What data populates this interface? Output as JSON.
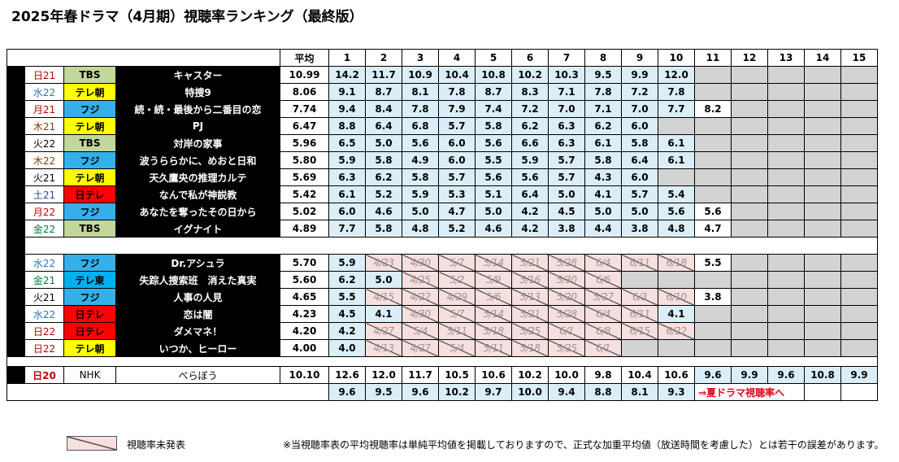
{
  "title": "2025年春ドラマ（4月期）視聴率ランキング（最終版）",
  "header": {
    "avg_label": "平均",
    "episodes": [
      "1",
      "2",
      "3",
      "4",
      "5",
      "6",
      "7",
      "8",
      "9",
      "10",
      "11",
      "12",
      "13",
      "14",
      "15"
    ]
  },
  "colors": {
    "tbs": "#c4d79b",
    "tvasahi": "#ffff00",
    "fuji": "#33b0ea",
    "ntv": "#ff0000",
    "tvtokyo": "#00b0f0",
    "blue_cell": "#dbeef8",
    "hatch_cell": "#f6dfdf",
    "gray_cell": "#d3d3d3",
    "mon": "#c00000",
    "tue": "#000000",
    "wed": "#2e75b6",
    "thu": "#833c0b",
    "fri": "#c00000",
    "sat": "#1f4e9a",
    "sun_day": "#c00000",
    "gold": "#00803a"
  },
  "dramas": [
    {
      "day": "日21",
      "day_color": "#c00000",
      "station": "TBS",
      "station_color": "#c4d79b",
      "title": "キャスター",
      "avg": "10.99",
      "eps": [
        {
          "t": "v",
          "v": "14.2"
        },
        {
          "t": "v",
          "v": "11.7"
        },
        {
          "t": "v",
          "v": "10.9"
        },
        {
          "t": "v",
          "v": "10.4"
        },
        {
          "t": "v",
          "v": "10.8"
        },
        {
          "t": "v",
          "v": "10.2"
        },
        {
          "t": "v",
          "v": "10.3"
        },
        {
          "t": "v",
          "v": "9.5"
        },
        {
          "t": "v",
          "v": "9.9"
        },
        {
          "t": "v",
          "v": "12.0"
        },
        {
          "t": "g",
          "v": ""
        },
        {
          "t": "g",
          "v": ""
        },
        {
          "t": "g",
          "v": ""
        },
        {
          "t": "g",
          "v": ""
        },
        {
          "t": "g",
          "v": ""
        }
      ]
    },
    {
      "day": "水22",
      "day_color": "#2e75b6",
      "station": "テレ朝",
      "station_color": "#ffff00",
      "title": "特捜9",
      "avg": "8.06",
      "eps": [
        {
          "t": "v",
          "v": "9.1"
        },
        {
          "t": "v",
          "v": "8.7"
        },
        {
          "t": "v",
          "v": "8.1"
        },
        {
          "t": "v",
          "v": "7.8"
        },
        {
          "t": "v",
          "v": "8.7"
        },
        {
          "t": "v",
          "v": "8.3"
        },
        {
          "t": "v",
          "v": "7.1"
        },
        {
          "t": "v",
          "v": "7.8"
        },
        {
          "t": "v",
          "v": "7.2"
        },
        {
          "t": "v",
          "v": "7.8"
        },
        {
          "t": "g",
          "v": ""
        },
        {
          "t": "g",
          "v": ""
        },
        {
          "t": "g",
          "v": ""
        },
        {
          "t": "g",
          "v": ""
        },
        {
          "t": "g",
          "v": ""
        }
      ]
    },
    {
      "day": "月21",
      "day_color": "#c00000",
      "station": "フジ",
      "station_color": "#33b0ea",
      "title": "続・続・最後から二番目の恋",
      "avg": "7.74",
      "eps": [
        {
          "t": "v",
          "v": "9.4"
        },
        {
          "t": "v",
          "v": "8.4"
        },
        {
          "t": "v",
          "v": "7.8"
        },
        {
          "t": "v",
          "v": "7.9"
        },
        {
          "t": "v",
          "v": "7.4"
        },
        {
          "t": "v",
          "v": "7.2"
        },
        {
          "t": "v",
          "v": "7.0"
        },
        {
          "t": "v",
          "v": "7.1"
        },
        {
          "t": "v",
          "v": "7.0"
        },
        {
          "t": "v",
          "v": "7.7"
        },
        {
          "t": "w",
          "v": "8.2"
        },
        {
          "t": "g",
          "v": ""
        },
        {
          "t": "g",
          "v": ""
        },
        {
          "t": "g",
          "v": ""
        },
        {
          "t": "g",
          "v": ""
        }
      ]
    },
    {
      "day": "木21",
      "day_color": "#833c0b",
      "station": "テレ朝",
      "station_color": "#ffff00",
      "title": "PJ",
      "avg": "6.47",
      "eps": [
        {
          "t": "v",
          "v": "8.8"
        },
        {
          "t": "v",
          "v": "6.4"
        },
        {
          "t": "v",
          "v": "6.8"
        },
        {
          "t": "v",
          "v": "5.7"
        },
        {
          "t": "v",
          "v": "5.8"
        },
        {
          "t": "v",
          "v": "6.2"
        },
        {
          "t": "v",
          "v": "6.3"
        },
        {
          "t": "v",
          "v": "6.2"
        },
        {
          "t": "v",
          "v": "6.0"
        },
        {
          "t": "g",
          "v": ""
        },
        {
          "t": "g",
          "v": ""
        },
        {
          "t": "g",
          "v": ""
        },
        {
          "t": "g",
          "v": ""
        },
        {
          "t": "g",
          "v": ""
        },
        {
          "t": "g",
          "v": ""
        }
      ]
    },
    {
      "day": "火22",
      "day_color": "#000000",
      "station": "TBS",
      "station_color": "#c4d79b",
      "title": "対岸の家事",
      "avg": "5.96",
      "eps": [
        {
          "t": "v",
          "v": "6.5"
        },
        {
          "t": "v",
          "v": "5.0"
        },
        {
          "t": "v",
          "v": "5.6"
        },
        {
          "t": "v",
          "v": "6.0"
        },
        {
          "t": "v",
          "v": "5.6"
        },
        {
          "t": "v",
          "v": "6.6"
        },
        {
          "t": "v",
          "v": "6.3"
        },
        {
          "t": "v",
          "v": "6.1"
        },
        {
          "t": "v",
          "v": "5.8"
        },
        {
          "t": "v",
          "v": "6.1"
        },
        {
          "t": "g",
          "v": ""
        },
        {
          "t": "g",
          "v": ""
        },
        {
          "t": "g",
          "v": ""
        },
        {
          "t": "g",
          "v": ""
        },
        {
          "t": "g",
          "v": ""
        }
      ]
    },
    {
      "day": "木22",
      "day_color": "#833c0b",
      "station": "フジ",
      "station_color": "#33b0ea",
      "title": "波うららかに、めおと日和",
      "avg": "5.80",
      "eps": [
        {
          "t": "v",
          "v": "5.9"
        },
        {
          "t": "v",
          "v": "5.8"
        },
        {
          "t": "v",
          "v": "4.9"
        },
        {
          "t": "v",
          "v": "6.0"
        },
        {
          "t": "v",
          "v": "5.5"
        },
        {
          "t": "v",
          "v": "5.9"
        },
        {
          "t": "v",
          "v": "5.7"
        },
        {
          "t": "v",
          "v": "5.8"
        },
        {
          "t": "v",
          "v": "6.4"
        },
        {
          "t": "v",
          "v": "6.1"
        },
        {
          "t": "g",
          "v": ""
        },
        {
          "t": "g",
          "v": ""
        },
        {
          "t": "g",
          "v": ""
        },
        {
          "t": "g",
          "v": ""
        },
        {
          "t": "g",
          "v": ""
        }
      ]
    },
    {
      "day": "火21",
      "day_color": "#000000",
      "station": "テレ朝",
      "station_color": "#ffff00",
      "title": "天久鷹央の推理カルテ",
      "avg": "5.69",
      "eps": [
        {
          "t": "v",
          "v": "6.3"
        },
        {
          "t": "v",
          "v": "6.2"
        },
        {
          "t": "v",
          "v": "5.8"
        },
        {
          "t": "v",
          "v": "5.7"
        },
        {
          "t": "v",
          "v": "5.6"
        },
        {
          "t": "v",
          "v": "5.6"
        },
        {
          "t": "v",
          "v": "5.7"
        },
        {
          "t": "v",
          "v": "4.3"
        },
        {
          "t": "v",
          "v": "6.0"
        },
        {
          "t": "g",
          "v": ""
        },
        {
          "t": "g",
          "v": ""
        },
        {
          "t": "g",
          "v": ""
        },
        {
          "t": "g",
          "v": ""
        },
        {
          "t": "g",
          "v": ""
        },
        {
          "t": "g",
          "v": ""
        }
      ]
    },
    {
      "day": "土21",
      "day_color": "#1f4e9a",
      "station": "日テレ",
      "station_color": "#ff0000",
      "title": "なんで私が神説教",
      "avg": "5.42",
      "eps": [
        {
          "t": "v",
          "v": "6.1"
        },
        {
          "t": "v",
          "v": "5.2"
        },
        {
          "t": "v",
          "v": "5.9"
        },
        {
          "t": "v",
          "v": "5.3"
        },
        {
          "t": "v",
          "v": "5.1"
        },
        {
          "t": "v",
          "v": "6.4"
        },
        {
          "t": "v",
          "v": "5.0"
        },
        {
          "t": "v",
          "v": "4.1"
        },
        {
          "t": "v",
          "v": "5.7"
        },
        {
          "t": "v",
          "v": "5.4"
        },
        {
          "t": "g",
          "v": ""
        },
        {
          "t": "g",
          "v": ""
        },
        {
          "t": "g",
          "v": ""
        },
        {
          "t": "g",
          "v": ""
        },
        {
          "t": "g",
          "v": ""
        }
      ]
    },
    {
      "day": "月22",
      "day_color": "#c00000",
      "station": "フジ",
      "station_color": "#33b0ea",
      "title": "あなたを奪ったその日から",
      "avg": "5.02",
      "eps": [
        {
          "t": "v",
          "v": "6.0"
        },
        {
          "t": "v",
          "v": "4.6"
        },
        {
          "t": "v",
          "v": "5.0"
        },
        {
          "t": "v",
          "v": "4.7"
        },
        {
          "t": "v",
          "v": "5.0"
        },
        {
          "t": "v",
          "v": "4.2"
        },
        {
          "t": "v",
          "v": "4.5"
        },
        {
          "t": "v",
          "v": "5.0"
        },
        {
          "t": "v",
          "v": "5.0"
        },
        {
          "t": "v",
          "v": "5.6"
        },
        {
          "t": "w",
          "v": "5.6"
        },
        {
          "t": "g",
          "v": ""
        },
        {
          "t": "g",
          "v": ""
        },
        {
          "t": "g",
          "v": ""
        },
        {
          "t": "g",
          "v": ""
        }
      ]
    },
    {
      "day": "金22",
      "day_color": "#00803a",
      "station": "TBS",
      "station_color": "#c4d79b",
      "title": "イグナイト",
      "avg": "4.89",
      "eps": [
        {
          "t": "v",
          "v": "7.7"
        },
        {
          "t": "v",
          "v": "5.8"
        },
        {
          "t": "v",
          "v": "4.8"
        },
        {
          "t": "v",
          "v": "5.2"
        },
        {
          "t": "v",
          "v": "4.6"
        },
        {
          "t": "v",
          "v": "4.2"
        },
        {
          "t": "v",
          "v": "3.8"
        },
        {
          "t": "v",
          "v": "4.4"
        },
        {
          "t": "v",
          "v": "3.8"
        },
        {
          "t": "v",
          "v": "4.8"
        },
        {
          "t": "w",
          "v": "4.7"
        },
        {
          "t": "g",
          "v": ""
        },
        {
          "t": "g",
          "v": ""
        },
        {
          "t": "g",
          "v": ""
        },
        {
          "t": "g",
          "v": ""
        }
      ]
    },
    {
      "sep": true
    },
    {
      "day": "水22",
      "day_color": "#2e75b6",
      "station": "フジ",
      "station_color": "#33b0ea",
      "title": "Dr.アシュラ",
      "avg": "5.70",
      "eps": [
        {
          "t": "v",
          "v": "5.9"
        },
        {
          "t": "h",
          "v": "4/23"
        },
        {
          "t": "h",
          "v": "4/30"
        },
        {
          "t": "h",
          "v": "5/7"
        },
        {
          "t": "h",
          "v": "5/14"
        },
        {
          "t": "h",
          "v": "5/21"
        },
        {
          "t": "h",
          "v": "5/28"
        },
        {
          "t": "h",
          "v": "6/4"
        },
        {
          "t": "h",
          "v": "6/11"
        },
        {
          "t": "h",
          "v": "6/18"
        },
        {
          "t": "w",
          "v": "5.5"
        },
        {
          "t": "g",
          "v": ""
        },
        {
          "t": "g",
          "v": ""
        },
        {
          "t": "g",
          "v": ""
        },
        {
          "t": "g",
          "v": ""
        }
      ]
    },
    {
      "day": "金21",
      "day_color": "#00803a",
      "station": "テレ東",
      "station_color": "#00b0f0",
      "title": "失踪人捜索班　消えた真実",
      "avg": "5.60",
      "eps": [
        {
          "t": "v",
          "v": "6.2"
        },
        {
          "t": "v",
          "v": "5.0"
        },
        {
          "t": "h",
          "v": "4/25"
        },
        {
          "t": "h",
          "v": "5/2"
        },
        {
          "t": "h",
          "v": "5/9"
        },
        {
          "t": "h",
          "v": "5/16"
        },
        {
          "t": "h",
          "v": "5/30"
        },
        {
          "t": "h",
          "v": "6/6"
        },
        {
          "t": "g",
          "v": ""
        },
        {
          "t": "g",
          "v": ""
        },
        {
          "t": "g",
          "v": ""
        },
        {
          "t": "g",
          "v": ""
        },
        {
          "t": "g",
          "v": ""
        },
        {
          "t": "g",
          "v": ""
        },
        {
          "t": "g",
          "v": ""
        }
      ]
    },
    {
      "day": "火21",
      "day_color": "#000000",
      "station": "フジ",
      "station_color": "#33b0ea",
      "title": "人事の人見",
      "avg": "4.65",
      "eps": [
        {
          "t": "v",
          "v": "5.5"
        },
        {
          "t": "h",
          "v": "4/15"
        },
        {
          "t": "h",
          "v": "4/22"
        },
        {
          "t": "h",
          "v": "4/29"
        },
        {
          "t": "h",
          "v": "5/6"
        },
        {
          "t": "h",
          "v": "5/13"
        },
        {
          "t": "h",
          "v": "5/20"
        },
        {
          "t": "h",
          "v": "5/27"
        },
        {
          "t": "h",
          "v": "6/3"
        },
        {
          "t": "h",
          "v": "6/10"
        },
        {
          "t": "w",
          "v": "3.8"
        },
        {
          "t": "g",
          "v": ""
        },
        {
          "t": "g",
          "v": ""
        },
        {
          "t": "g",
          "v": ""
        },
        {
          "t": "g",
          "v": ""
        }
      ]
    },
    {
      "day": "水22",
      "day_color": "#2e75b6",
      "station": "日テレ",
      "station_color": "#ff0000",
      "title": "恋は闇",
      "avg": "4.23",
      "eps": [
        {
          "t": "v",
          "v": "4.5"
        },
        {
          "t": "v",
          "v": "4.1"
        },
        {
          "t": "h",
          "v": "4/30"
        },
        {
          "t": "h",
          "v": "5/7"
        },
        {
          "t": "h",
          "v": "5/14"
        },
        {
          "t": "h",
          "v": "5/21"
        },
        {
          "t": "h",
          "v": "5/28"
        },
        {
          "t": "h",
          "v": "6/4"
        },
        {
          "t": "h",
          "v": "6/11"
        },
        {
          "t": "v",
          "v": "4.1"
        },
        {
          "t": "g",
          "v": ""
        },
        {
          "t": "g",
          "v": ""
        },
        {
          "t": "g",
          "v": ""
        },
        {
          "t": "g",
          "v": ""
        },
        {
          "t": "g",
          "v": ""
        }
      ]
    },
    {
      "day": "日22",
      "day_color": "#c00000",
      "station": "日テレ",
      "station_color": "#ff0000",
      "title": "ダメマネ！",
      "avg": "4.20",
      "eps": [
        {
          "t": "v",
          "v": "4.2"
        },
        {
          "t": "h",
          "v": "4/27"
        },
        {
          "t": "h",
          "v": "5/4"
        },
        {
          "t": "h",
          "v": "5/11"
        },
        {
          "t": "h",
          "v": "5/18"
        },
        {
          "t": "h",
          "v": "5/25"
        },
        {
          "t": "h",
          "v": "6/1"
        },
        {
          "t": "h",
          "v": "6/8"
        },
        {
          "t": "h",
          "v": "6/15"
        },
        {
          "t": "h",
          "v": "6/22"
        },
        {
          "t": "g",
          "v": ""
        },
        {
          "t": "g",
          "v": ""
        },
        {
          "t": "g",
          "v": ""
        },
        {
          "t": "g",
          "v": ""
        },
        {
          "t": "g",
          "v": ""
        }
      ]
    },
    {
      "day": "日22",
      "day_color": "#c00000",
      "station": "テレ朝",
      "station_color": "#ffff00",
      "title": "いつか、ヒーロー",
      "avg": "4.00",
      "eps": [
        {
          "t": "v",
          "v": "4.0"
        },
        {
          "t": "h",
          "v": "4/13"
        },
        {
          "t": "h",
          "v": "4/27"
        },
        {
          "t": "h",
          "v": "5/4"
        },
        {
          "t": "h",
          "v": "5/11"
        },
        {
          "t": "h",
          "v": "5/18"
        },
        {
          "t": "h",
          "v": "5/25"
        },
        {
          "t": "h",
          "v": "6/1"
        },
        {
          "t": "g",
          "v": ""
        },
        {
          "t": "g",
          "v": ""
        },
        {
          "t": "g",
          "v": ""
        },
        {
          "t": "g",
          "v": ""
        },
        {
          "t": "g",
          "v": ""
        },
        {
          "t": "g",
          "v": ""
        },
        {
          "t": "g",
          "v": ""
        }
      ]
    }
  ],
  "nhk": {
    "day": "日20",
    "station": "NHK",
    "title": "べらぼう",
    "avg": "10.10",
    "eps": [
      "12.6",
      "12.0",
      "11.7",
      "10.5",
      "10.6",
      "10.2",
      "10.0",
      "9.8",
      "10.4",
      "10.6",
      "9.6",
      "9.9",
      "9.6",
      "10.8",
      "9.9"
    ],
    "row2": [
      "9.6",
      "9.5",
      "9.6",
      "10.2",
      "9.7",
      "10.0",
      "9.4",
      "8.8",
      "8.1",
      "9.3"
    ],
    "link": "⇒夏ドラマ視聴率へ"
  },
  "legend": {
    "label": "視聴率未発表"
  },
  "footnote": "※当視聴率表の平均視聴率は単純平均値を掲載しておりますので、正式な加重平均値（放送時間を考慮した）とは若干の誤差があります。"
}
